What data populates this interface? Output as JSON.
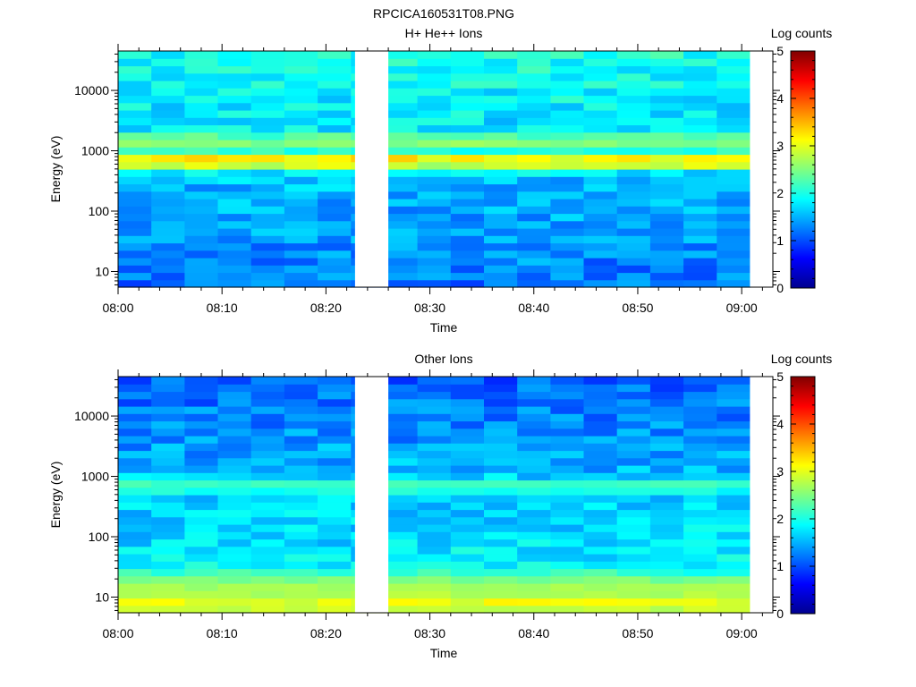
{
  "file_title": "RPCICA160531T08.PNG",
  "colorbar_label": "Log counts",
  "colorbar_ticks": [
    "0",
    "1",
    "2",
    "3",
    "4",
    "5"
  ],
  "colors": {
    "colormap": [
      "#00008f",
      "#0000ff",
      "#0080ff",
      "#00ffff",
      "#80ff80",
      "#ffff00",
      "#ff8000",
      "#ff0000",
      "#800000"
    ],
    "gap": "#ffffff"
  },
  "chart_data": [
    {
      "type": "heatmap",
      "title": "H+ He++ Ions",
      "xlabel": "Time",
      "ylabel": "Energy (eV)",
      "x_ticks": [
        "08:00",
        "08:10",
        "08:20",
        "08:30",
        "08:40",
        "08:50",
        "09:00"
      ],
      "x_range_minutes": [
        0,
        63
      ],
      "y_scale": "log",
      "y_ticks": [
        "10",
        "100",
        "1000",
        "10000"
      ],
      "y_range_eV": [
        5.5,
        45000
      ],
      "z_label": "Log counts",
      "z_range": [
        0,
        5
      ],
      "data_gaps_minutes": [
        [
          22.8,
          26.0
        ],
        [
          60.8,
          63.0
        ]
      ],
      "time_bins": 19,
      "energy_bins": 32,
      "features": [
        {
          "energy_eV": 680,
          "log_counts": 3.4,
          "description": "band"
        },
        {
          "energy_eV": 1450,
          "log_counts": 2.6,
          "description": "band"
        }
      ],
      "typical_log_counts": {
        "low_energy": 1.2,
        "mid_energy": 1.6,
        "high_energy": 2.0
      }
    },
    {
      "type": "heatmap",
      "title": "Other Ions",
      "xlabel": "Time",
      "ylabel": "Energy (eV)",
      "x_ticks": [
        "08:00",
        "08:10",
        "08:20",
        "08:30",
        "08:40",
        "08:50",
        "09:00"
      ],
      "x_range_minutes": [
        0,
        63
      ],
      "y_scale": "log",
      "y_ticks": [
        "10",
        "100",
        "1000",
        "10000"
      ],
      "y_range_eV": [
        5.5,
        45000
      ],
      "z_label": "Log counts",
      "z_range": [
        0,
        5
      ],
      "data_gaps_minutes": [
        [
          22.8,
          26.0
        ],
        [
          60.8,
          63.0
        ]
      ],
      "time_bins": 19,
      "energy_bins": 32,
      "features": [
        {
          "energy_eV": 700,
          "log_counts": 2.2,
          "description": "band"
        },
        {
          "energy_eV": 8,
          "log_counts": 3.0,
          "description": "low-energy enhancement"
        },
        {
          "energy_eV": 14,
          "log_counts": 2.7,
          "description": "low-energy enhancement"
        }
      ],
      "typical_log_counts": {
        "low_energy": 1.9,
        "mid_energy": 1.6,
        "high_energy": 1.1
      }
    }
  ]
}
